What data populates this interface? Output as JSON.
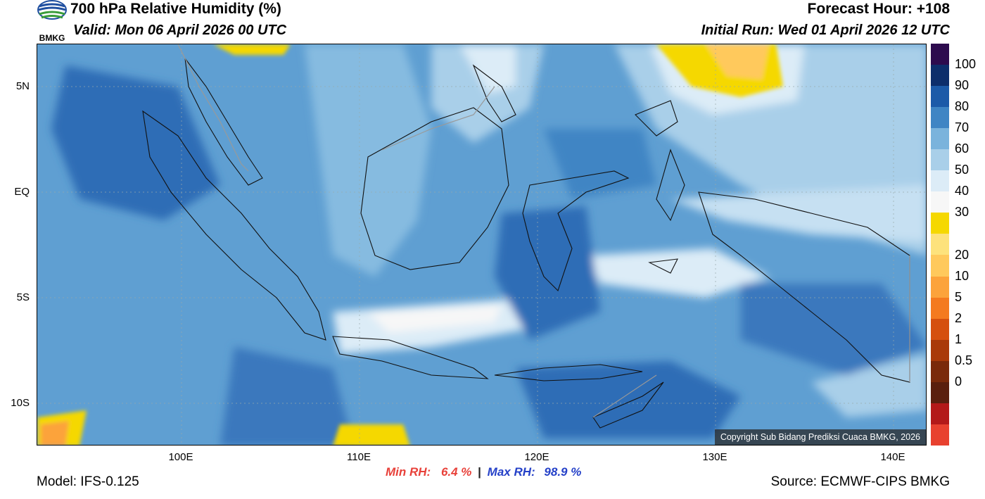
{
  "header": {
    "title": "700 hPa Relative Humidity (%)",
    "valid": "Valid: Mon 06 April 2026 00 UTC",
    "forecast_hour": "Forecast Hour: +108",
    "initial_run": "Initial Run: Wed 01 April 2026 12 UTC"
  },
  "logo": {
    "text": "BMKG",
    "colors": [
      "#1f4fa0",
      "#3a9d3a"
    ]
  },
  "map": {
    "lat_labels": [
      "5N",
      "EQ",
      "5S",
      "10S"
    ],
    "lon_labels": [
      "100E",
      "110E",
      "120E",
      "130E",
      "140E"
    ],
    "copyright": "Copyright Sub Bidang Prediksi Cuaca BMKG, 2026"
  },
  "colorbar": {
    "labels": [
      "100",
      "90",
      "80",
      "70",
      "60",
      "50",
      "40",
      "30",
      "20",
      "10",
      "5",
      "2",
      "1",
      "0.5",
      "0"
    ],
    "colors": [
      "#2d0b4e",
      "#0d2e6b",
      "#1c5aa8",
      "#3f85c4",
      "#7ab3dc",
      "#a9cfe9",
      "#dcecf7",
      "#f7f7f7",
      "#f5d800",
      "#fde27c",
      "#ffc95c",
      "#fca33b",
      "#f47a1f",
      "#d5500e",
      "#a93a0a",
      "#7a2a0b",
      "#5a1f0e",
      "#b31919",
      "#e8412f"
    ]
  },
  "stats": {
    "min_label": "Min RH:",
    "min_value": "6.4 %",
    "separator": "|",
    "max_label": "Max RH:",
    "max_value": "98.9 %"
  },
  "footer": {
    "model": "Model: IFS-0.125",
    "source": "Source: ECMWF-CIPS BMKG"
  }
}
